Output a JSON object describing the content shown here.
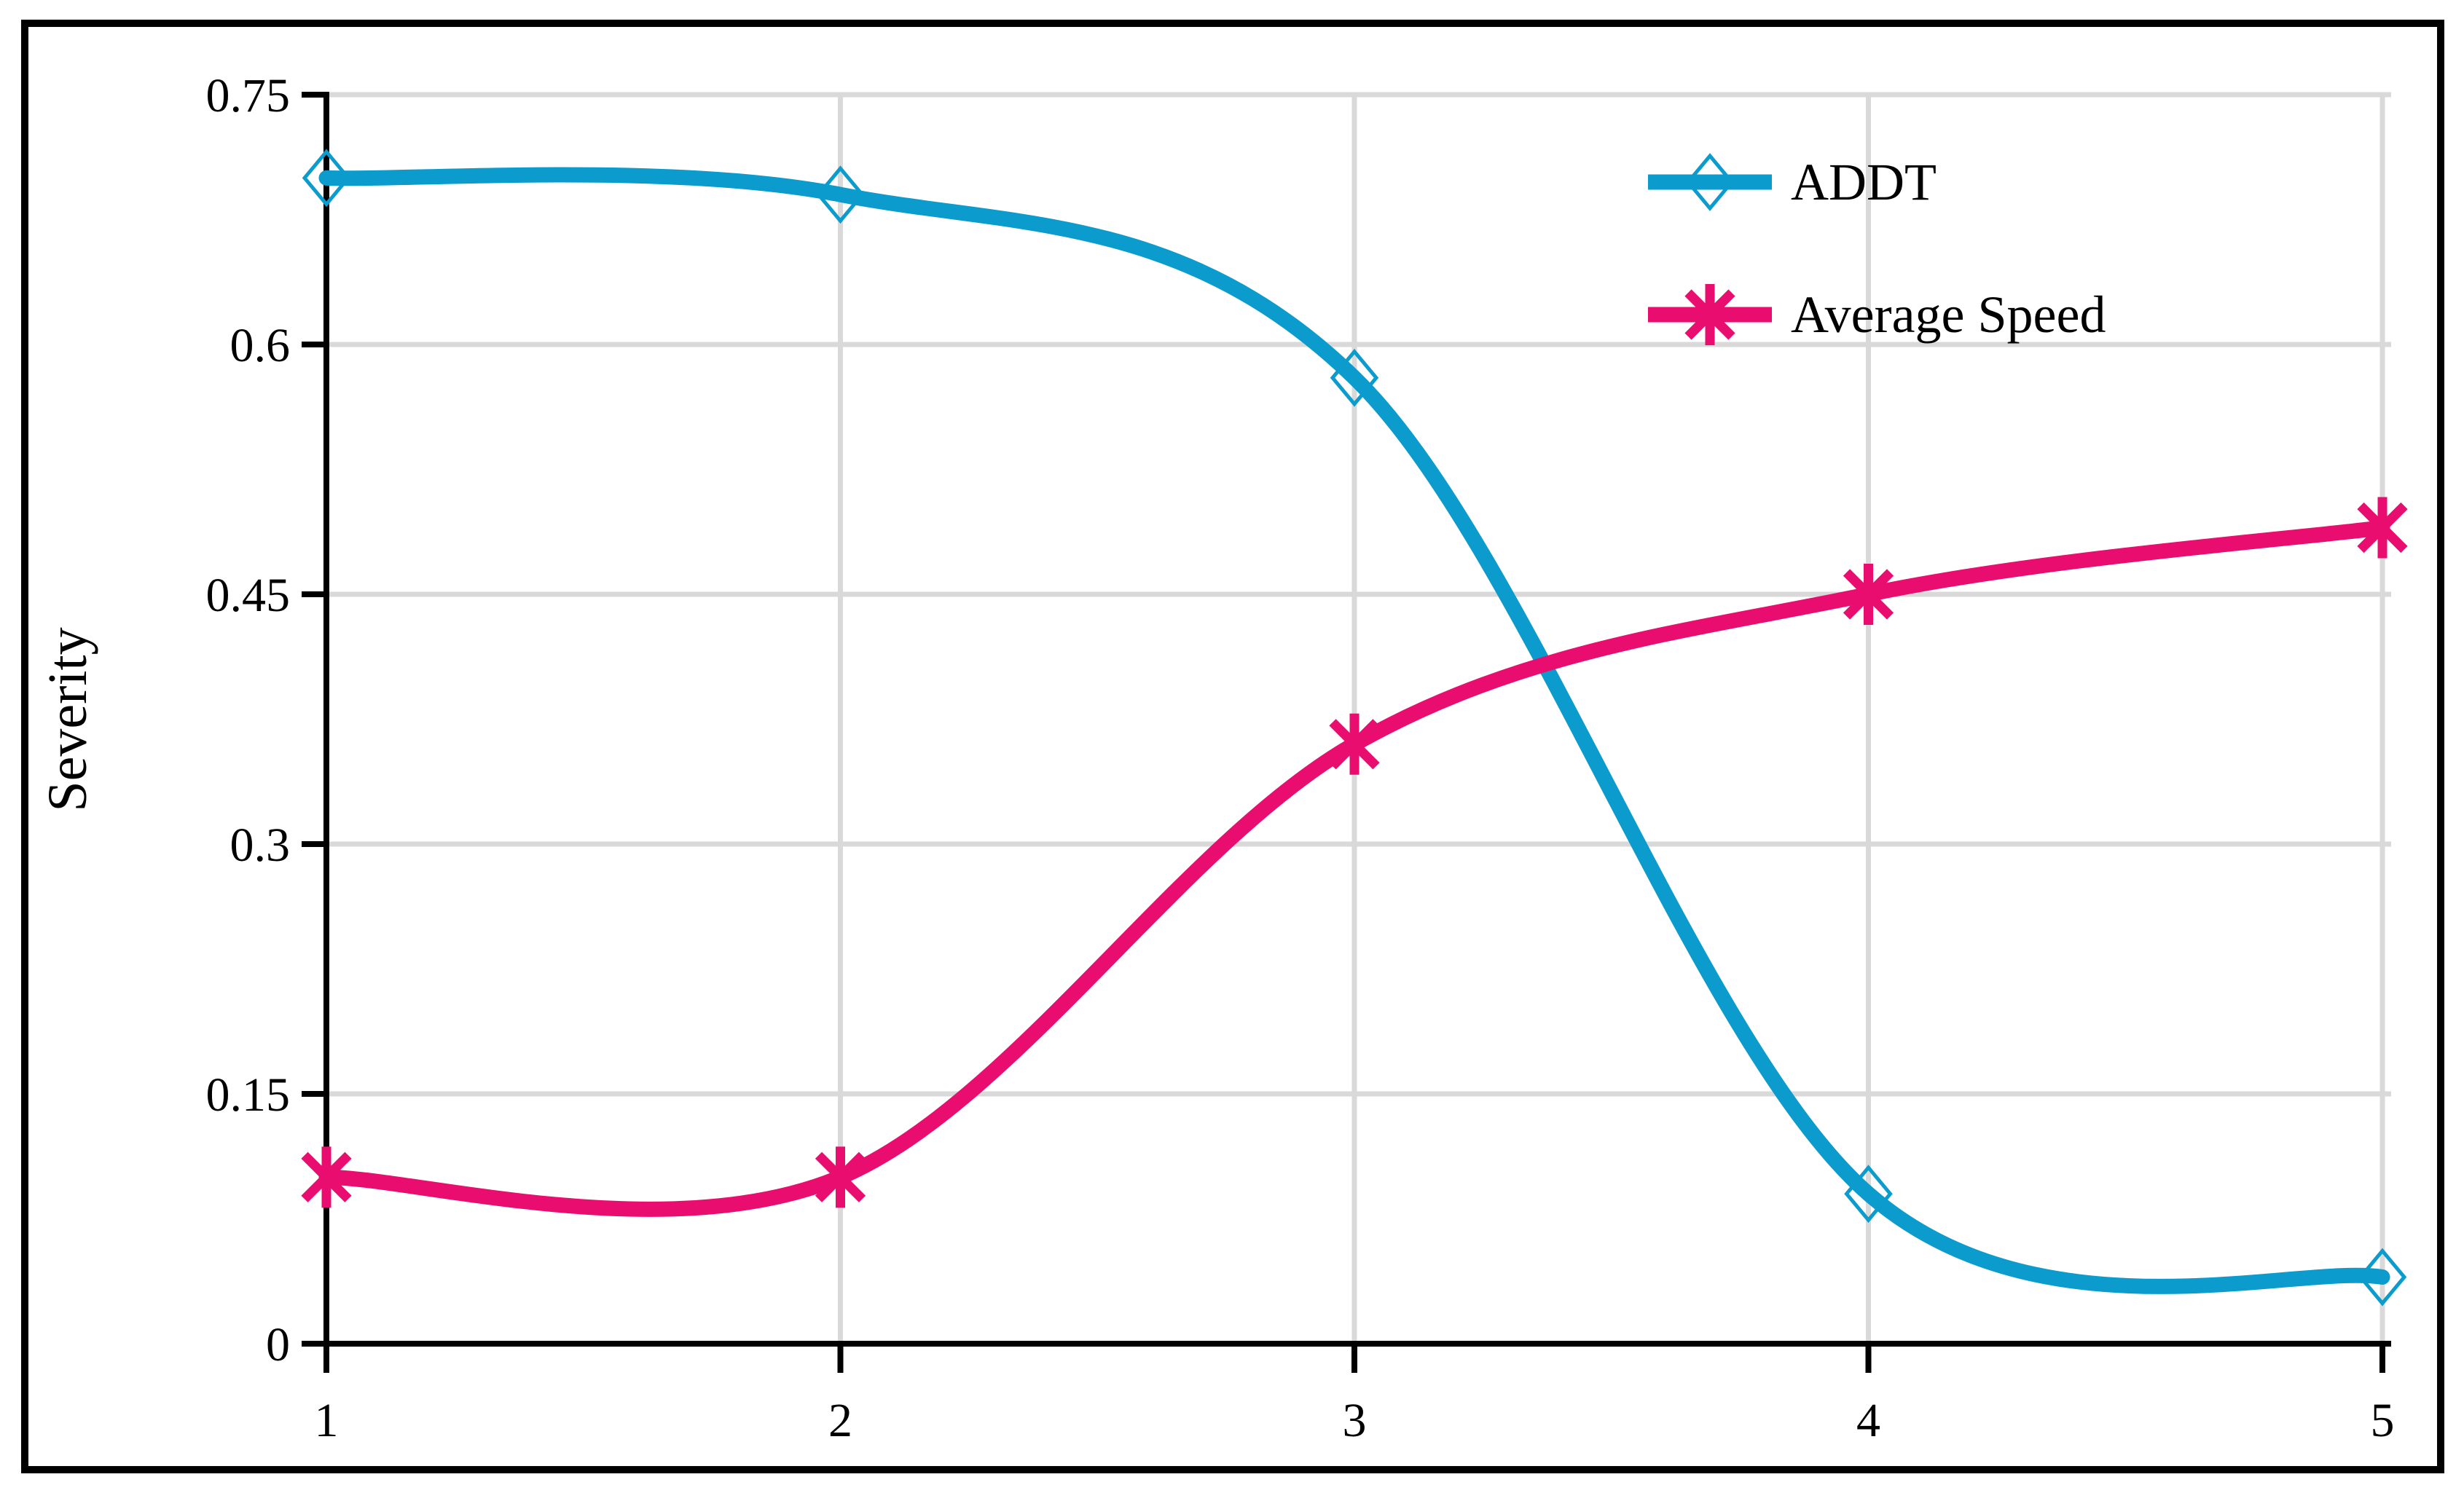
{
  "figure": {
    "background": "#ffffff",
    "border_color": "#000000"
  },
  "axes": {
    "y_title": "Severity"
  },
  "chart_data": {
    "type": "line",
    "title": "",
    "xlabel": "",
    "ylabel": "Severity",
    "line_style": "smooth",
    "grid": true,
    "gridline_color": "#d9d9d9",
    "axis_color": "#000000",
    "xlim": [
      1,
      5
    ],
    "ylim": [
      0,
      0.75
    ],
    "x": [
      1,
      2,
      3,
      4,
      5
    ],
    "x_ticks": [
      "1",
      "2",
      "3",
      "4",
      "5"
    ],
    "y_tick_values": [
      0,
      0.15,
      0.3,
      0.45,
      0.6,
      0.75
    ],
    "y_ticks": [
      "0",
      "0.15",
      "0.3",
      "0.45",
      "0.6",
      "0.75"
    ],
    "legend_position": "top-right-inside",
    "series": [
      {
        "name": "ADDT",
        "color": "#0b9bcd",
        "marker": "open-diamond",
        "values": [
          0.7,
          0.69,
          0.58,
          0.09,
          0.04
        ]
      },
      {
        "name": "Average Speed",
        "color": "#e80d6e",
        "marker": "asterisk",
        "values": [
          0.1,
          0.1,
          0.36,
          0.45,
          0.49
        ]
      }
    ]
  }
}
